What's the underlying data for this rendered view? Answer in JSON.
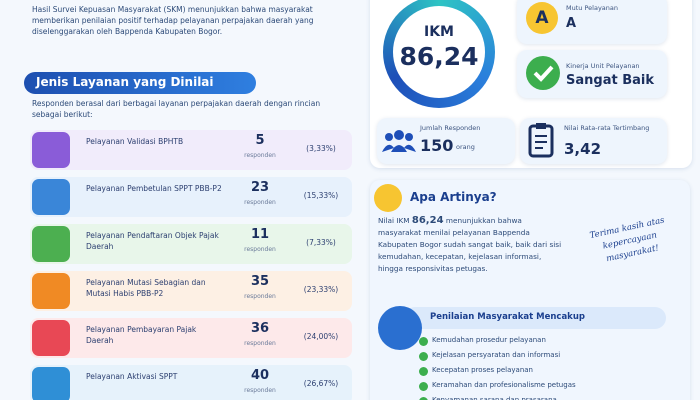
{
  "intro": "Hasil Survei Kepuasan Masyarakat (SKM) menunjukkan bahwa masyarakat memberikan penilaian positif terhadap pelayanan perpajakan daerah yang diselenggarakan oleh Bappenda Kabupaten Bogor.",
  "services_section": {
    "title": "Jenis Layanan yang Dinilai",
    "description": "Responden berasal dari berbagai layanan perpajakan daerah dengan rincian sebagai berikut:",
    "items": [
      {
        "name": "Pelayanan Validasi BPHTB",
        "count": "5",
        "unit": "responden",
        "percent": "(3,33%)"
      },
      {
        "name": "Pelayanan Pembetulan SPPT PBB-P2",
        "count": "23",
        "unit": "responden",
        "percent": "(15,33%)"
      },
      {
        "name": "Pelayanan Pendaftaran Objek Pajak Daerah",
        "count": "11",
        "unit": "responden",
        "percent": "(7,33%)"
      },
      {
        "name": "Pelayanan Mutasi Sebagian dan Mutasi Habis PBB-P2",
        "count": "35",
        "unit": "responden",
        "percent": "(23,33%)"
      },
      {
        "name": "Pelayanan Pembayaran Pajak Daerah",
        "count": "36",
        "unit": "responden",
        "percent": "(24,00%)"
      },
      {
        "name": "Pelayanan Aktivasi SPPT",
        "count": "40",
        "unit": "responden",
        "percent": "(26,67%)"
      }
    ]
  },
  "score": {
    "label": "IKM",
    "value": "86,24"
  },
  "quality": {
    "badge": "A",
    "label": "Mutu Pelayanan",
    "value": "A"
  },
  "performance": {
    "label": "Kinerja Unit Pelayanan",
    "value": "Sangat Baik"
  },
  "respondents": {
    "label": "Jumlah Responden",
    "value": "150",
    "unit": "orang"
  },
  "average": {
    "label": "Nilai Rata-rata Tertimbang",
    "value": "3,42"
  },
  "meaning": {
    "title": "Apa Artinya?",
    "text_before": "Nilai IKM ",
    "text_score": "86,24",
    "text_after": " menunjukkan bahwa masyarakat menilai pelayanan Bappenda Kabupaten Bogor sudah sangat baik, baik dari sisi kemudahan, kecepatan, kejelasan informasi, hingga responsivitas petugas."
  },
  "thanks": "Terima kasih atas kepercayaan masyarakat!",
  "aspects": {
    "title": "Penilaian Masyarakat Mencakup",
    "items": [
      "Kemudahan prosedur pelayanan",
      "Kejelasan persyaratan dan informasi",
      "Kecepatan proses pelayanan",
      "Keramahan dan profesionalisme petugas",
      "Kenyamanan sarana dan prasarana"
    ]
  }
}
